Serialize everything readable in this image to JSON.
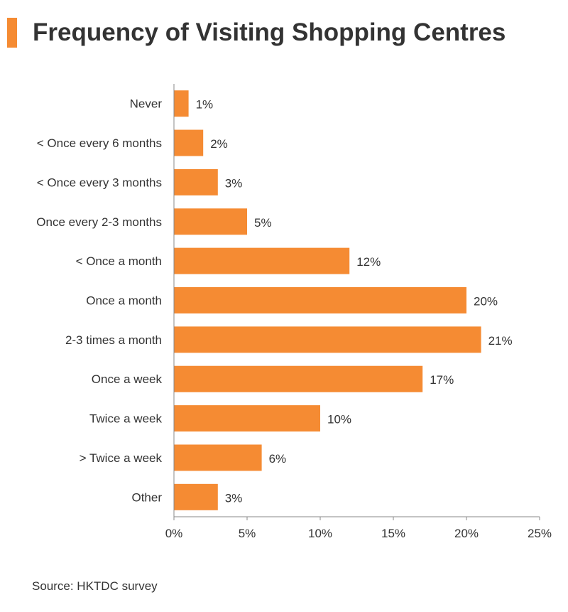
{
  "title": "Frequency of Visiting Shopping Centres",
  "source": "Source: HKTDC survey",
  "colors": {
    "accent": "#f58b33",
    "bar": "#f58b33",
    "axis": "#888888",
    "text": "#333333"
  },
  "chart_data": {
    "type": "bar",
    "orientation": "horizontal",
    "title": "Frequency of Visiting Shopping Centres",
    "xlabel": "",
    "ylabel": "",
    "categories": [
      "Never",
      "< Once every 6 months",
      "< Once every 3 months",
      "Once every 2-3 months",
      "< Once a month",
      "Once a month",
      "2-3 times a month",
      "Once a week",
      "Twice a week",
      "> Twice a week",
      "Other"
    ],
    "values": [
      1,
      2,
      3,
      5,
      12,
      20,
      21,
      17,
      10,
      6,
      3
    ],
    "value_labels": [
      "1%",
      "2%",
      "3%",
      "5%",
      "12%",
      "20%",
      "21%",
      "17%",
      "10%",
      "6%",
      "3%"
    ],
    "xlim": [
      0,
      25
    ],
    "xticks": [
      0,
      5,
      10,
      15,
      20,
      25
    ],
    "xtick_labels": [
      "0%",
      "5%",
      "10%",
      "15%",
      "20%",
      "25%"
    ],
    "grid": false,
    "legend": "none"
  }
}
